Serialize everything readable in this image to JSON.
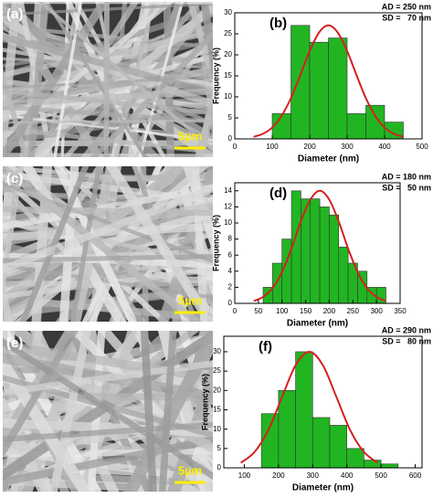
{
  "images": [
    {
      "label": "(a)",
      "scale_bar": "5µm"
    },
    {
      "label": "(c)",
      "scale_bar": "5µm"
    },
    {
      "label": "(e)",
      "scale_bar": "5µm"
    }
  ],
  "chart_data": [
    {
      "type": "histogram",
      "title": "(b)",
      "annotations": [
        "AD = 250 nm",
        "SD =   70 nm"
      ],
      "xlabel": "Diameter (nm)",
      "ylabel": "Frequency (%)",
      "color": "#22b522",
      "bins": [
        100,
        150,
        200,
        250,
        300,
        350,
        400,
        450
      ],
      "values": [
        6,
        27,
        23,
        24,
        6,
        8,
        4
      ],
      "xlim": [
        0,
        500
      ],
      "xticks": [
        0,
        100,
        200,
        300,
        400,
        500
      ],
      "ylim": [
        0,
        30
      ],
      "yticks": [
        0,
        5,
        10,
        15,
        20,
        25,
        30
      ],
      "curve": {
        "color": "#d42020",
        "x": [
          50,
          75,
          100,
          125,
          150,
          175,
          200,
          225,
          250,
          275,
          300,
          325,
          350,
          375,
          400,
          425,
          450
        ],
        "values": [
          0.5,
          1.2,
          2.7,
          5.5,
          9.7,
          15.2,
          20.9,
          25.3,
          27,
          25.3,
          20.9,
          15.2,
          9.7,
          5.5,
          2.7,
          1.2,
          0.5
        ]
      }
    },
    {
      "type": "histogram",
      "title": "(d)",
      "annotations": [
        "AD = 180 nm",
        "SD =   50 nm"
      ],
      "xlabel": "Diameter (nm)",
      "ylabel": "Frequency (%)",
      "color": "#22b522",
      "bins": [
        60,
        80,
        100,
        120,
        140,
        160,
        180,
        200,
        220,
        240,
        260,
        280,
        300,
        320
      ],
      "values": [
        2,
        5,
        8,
        14,
        13,
        13,
        12,
        11,
        7,
        5,
        4,
        2,
        2
      ],
      "xlim": [
        0,
        350
      ],
      "xticks": [
        0,
        50,
        100,
        150,
        200,
        250,
        300,
        350
      ],
      "ylim": [
        0,
        15
      ],
      "yticks": [
        0,
        2,
        4,
        6,
        8,
        10,
        12,
        14
      ],
      "curve": {
        "color": "#d42020",
        "x": [
          40,
          60,
          80,
          100,
          120,
          140,
          160,
          180,
          200,
          220,
          240,
          260,
          280,
          300,
          320
        ],
        "values": [
          0.3,
          0.8,
          1.9,
          3.9,
          6.8,
          10.2,
          12.9,
          14,
          12.9,
          10.2,
          6.8,
          3.9,
          1.9,
          0.8,
          0.3
        ]
      }
    },
    {
      "type": "histogram",
      "title": "(f)",
      "annotations": [
        "AD = 290 nm",
        "SD =   80 nm"
      ],
      "xlabel": "Diameter (nm)",
      "ylabel": "Frequency (%)",
      "color": "#22b522",
      "bins": [
        150,
        200,
        250,
        300,
        350,
        400,
        450,
        500,
        550
      ],
      "values": [
        14,
        20,
        30,
        13,
        11,
        5,
        2,
        1
      ],
      "xlim": [
        40,
        620
      ],
      "xticks": [
        100,
        200,
        300,
        400,
        500,
        600
      ],
      "ylim": [
        0,
        34
      ],
      "yticks": [
        0,
        5,
        10,
        15,
        20,
        25,
        30
      ],
      "curve": {
        "color": "#d42020",
        "x": [
          90,
          130,
          170,
          210,
          250,
          290,
          330,
          370,
          410,
          450,
          490
        ],
        "values": [
          1.3,
          4.1,
          9.7,
          18.2,
          26.5,
          30,
          26.5,
          18.2,
          9.7,
          4.1,
          1.3
        ]
      }
    }
  ]
}
